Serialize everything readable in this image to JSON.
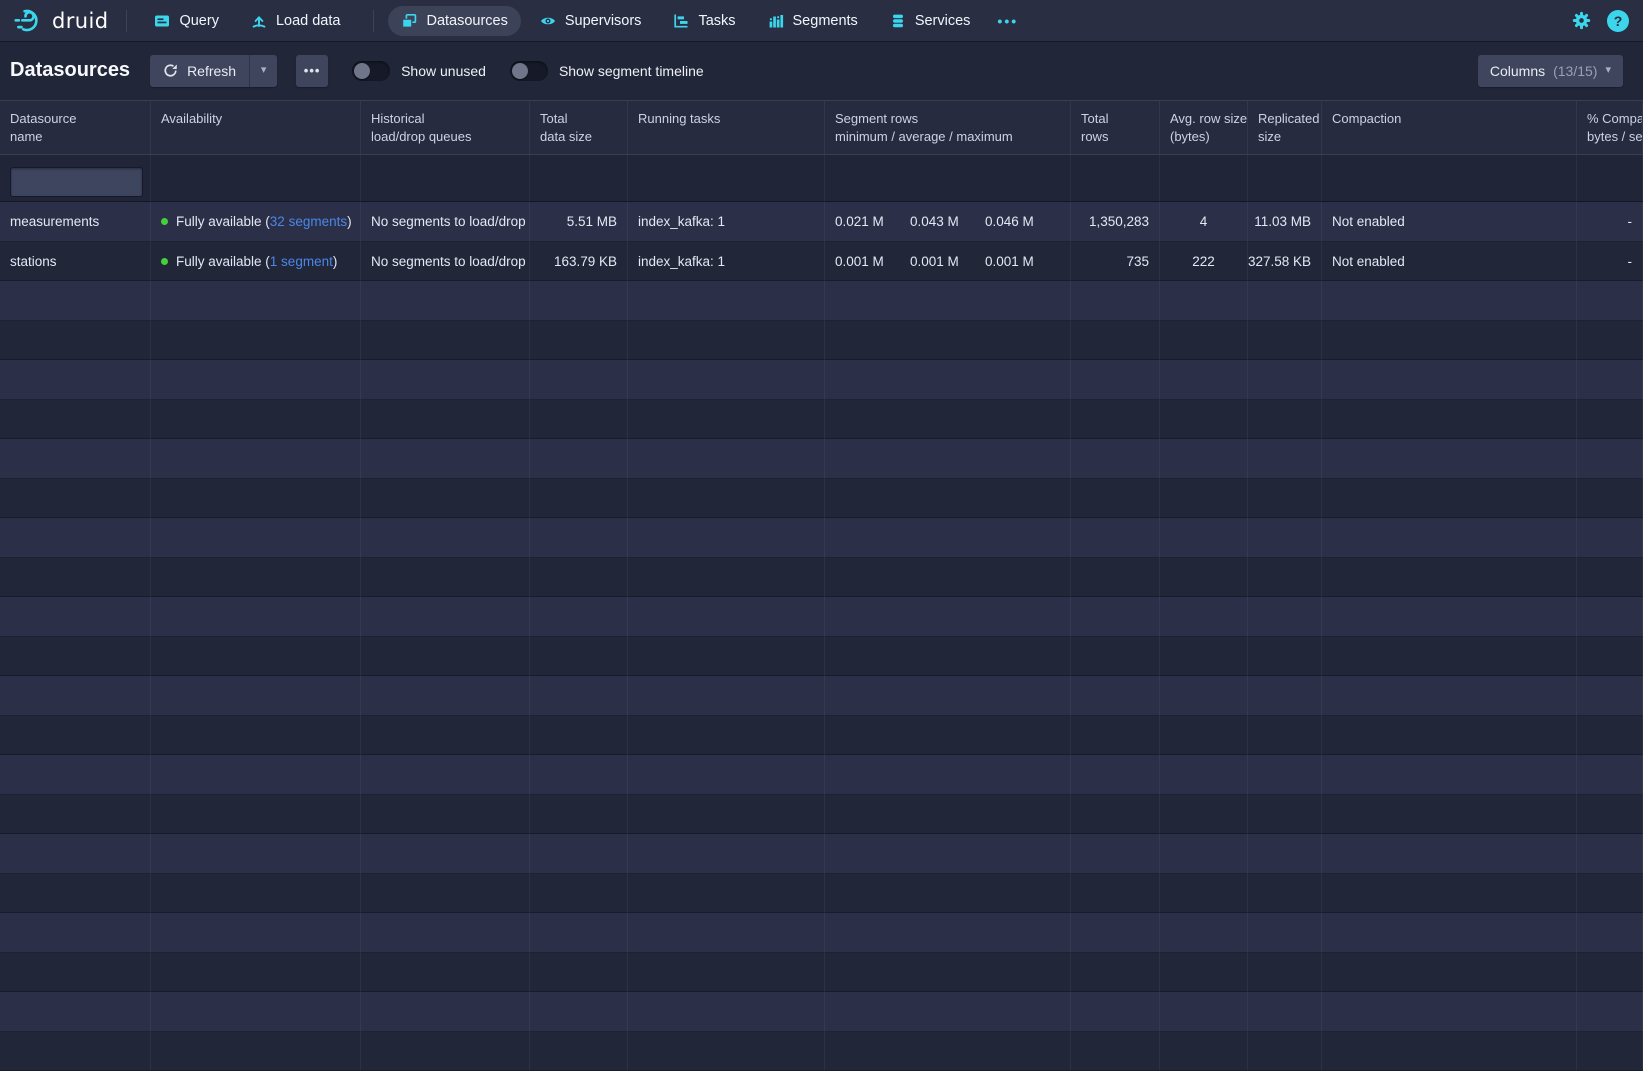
{
  "colors": {
    "accent_cyan": "#3bd6ec",
    "link_blue": "#4a87e8",
    "status_green": "#43d13a",
    "nav_bg": "#292e43",
    "page_bg": "#222639",
    "stripe_bg": "#2b3048",
    "header_row_bg": "#262b40",
    "button_bg": "#3f455c"
  },
  "nav": {
    "brand": "druid",
    "items": [
      {
        "label": "Query",
        "icon": "query-icon"
      },
      {
        "label": "Load data",
        "icon": "load-data-icon"
      },
      {
        "label": "Datasources",
        "icon": "datasources-icon",
        "active": true
      },
      {
        "label": "Supervisors",
        "icon": "supervisors-icon"
      },
      {
        "label": "Tasks",
        "icon": "tasks-icon"
      },
      {
        "label": "Segments",
        "icon": "segments-icon"
      },
      {
        "label": "Services",
        "icon": "services-icon"
      }
    ],
    "more": "•••",
    "help": "?"
  },
  "view_header": {
    "title": "Datasources",
    "refresh_label": "Refresh",
    "more": "•••",
    "toggles": [
      {
        "label": "Show unused",
        "state": "off"
      },
      {
        "label": "Show segment timeline",
        "state": "off"
      }
    ],
    "columns_button": {
      "label": "Columns",
      "count": "(13/15)"
    }
  },
  "table": {
    "columns": [
      {
        "id": "datasource-name",
        "lines": [
          "Datasource",
          "name"
        ]
      },
      {
        "id": "availability",
        "lines": [
          "Availability"
        ]
      },
      {
        "id": "load-drop-queues",
        "lines": [
          "Historical",
          "load/drop queues"
        ]
      },
      {
        "id": "total-data-size",
        "lines": [
          "Total",
          "data size"
        ]
      },
      {
        "id": "running-tasks",
        "lines": [
          "Running tasks"
        ]
      },
      {
        "id": "segment-rows",
        "lines": [
          "Segment rows",
          "minimum / average / maximum"
        ]
      },
      {
        "id": "total-rows",
        "lines": [
          "Total",
          "rows"
        ]
      },
      {
        "id": "avg-row-size",
        "lines": [
          "Avg. row size",
          "(bytes)"
        ]
      },
      {
        "id": "replicated-size",
        "lines": [
          "Replicated",
          "size"
        ]
      },
      {
        "id": "compaction",
        "lines": [
          "Compaction"
        ]
      },
      {
        "id": "pct-compacted",
        "lines": [
          "% Compa",
          "bytes / se"
        ]
      }
    ],
    "filter": {
      "value": "",
      "placeholder": ""
    },
    "rows": [
      {
        "name": "measurements",
        "availability": {
          "text": "Fully available (",
          "link": "32 segments",
          "suffix": ")"
        },
        "queues": "No segments to load/drop",
        "total_data_size": "5.51 MB",
        "running_tasks": "index_kafka: 1",
        "segment_rows": [
          "0.021 M",
          "0.043 M",
          "0.046 M"
        ],
        "total_rows": "1,350,283",
        "avg_row_size": "4",
        "replicated_size": "11.03 MB",
        "compaction": "Not enabled",
        "pct_compacted": "-"
      },
      {
        "name": "stations",
        "availability": {
          "text": "Fully available (",
          "link": "1 segment",
          "suffix": ")"
        },
        "queues": "No segments to load/drop",
        "total_data_size": "163.79 KB",
        "running_tasks": "index_kafka: 1",
        "segment_rows": [
          "0.001 M",
          "0.001 M",
          "0.001 M"
        ],
        "total_rows": "735",
        "avg_row_size": "222",
        "replicated_size": "327.58 KB",
        "compaction": "Not enabled",
        "pct_compacted": "-"
      }
    ],
    "empty_row_count": 20
  }
}
